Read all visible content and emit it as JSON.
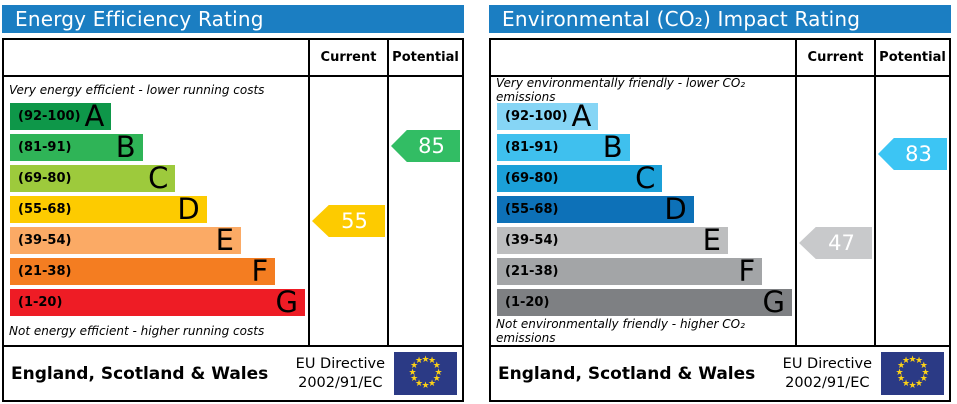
{
  "icons": {
    "eu_star": "★"
  },
  "panels": [
    {
      "title": "Energy Efficiency Rating",
      "column_headers": {
        "current": "Current",
        "potential": "Potential"
      },
      "caption_top": "Very energy efficient - lower running costs",
      "caption_bottom": "Not energy efficient - higher running costs",
      "bands": [
        {
          "grade": "A",
          "range": "(92-100)",
          "color": "#0e9749"
        },
        {
          "grade": "B",
          "range": "(81-91)",
          "color": "#2fb457"
        },
        {
          "grade": "C",
          "range": "(69-80)",
          "color": "#9dca3c"
        },
        {
          "grade": "D",
          "range": "(55-68)",
          "color": "#fdcb00"
        },
        {
          "grade": "E",
          "range": "(39-54)",
          "color": "#fbaa65"
        },
        {
          "grade": "F",
          "range": "(21-38)",
          "color": "#f47d21"
        },
        {
          "grade": "G",
          "range": "(1-20)",
          "color": "#ee1c25"
        }
      ],
      "current": {
        "value": "55",
        "color": "#fdcb00"
      },
      "potential": {
        "value": "85",
        "color": "#32bd64"
      },
      "footer": {
        "region": "England, Scotland & Wales",
        "directive_line1": "EU Directive",
        "directive_line2": "2002/91/EC"
      }
    },
    {
      "title": "Environmental (CO₂) Impact Rating",
      "column_headers": {
        "current": "Current",
        "potential": "Potential"
      },
      "caption_top": "Very environmentally friendly - lower CO₂ emissions",
      "caption_bottom": "Not environmentally friendly - higher CO₂ emissions",
      "bands": [
        {
          "grade": "A",
          "range": "(92-100)",
          "color": "#86d5f5"
        },
        {
          "grade": "B",
          "range": "(81-91)",
          "color": "#3fc0ee"
        },
        {
          "grade": "C",
          "range": "(69-80)",
          "color": "#1ba0d8"
        },
        {
          "grade": "D",
          "range": "(55-68)",
          "color": "#0d71b8"
        },
        {
          "grade": "E",
          "range": "(39-54)",
          "color": "#bdbebf"
        },
        {
          "grade": "F",
          "range": "(21-38)",
          "color": "#a3a5a7"
        },
        {
          "grade": "G",
          "range": "(1-20)",
          "color": "#7e8083"
        }
      ],
      "current": {
        "value": "47",
        "color": "#c8c9cb"
      },
      "potential": {
        "value": "83",
        "color": "#3cc5f4"
      },
      "footer": {
        "region": "England, Scotland & Wales",
        "directive_line1": "EU Directive",
        "directive_line2": "2002/91/EC"
      }
    }
  ],
  "chart_data": [
    {
      "type": "bar",
      "title": "Energy Efficiency Rating",
      "categories": [
        "A (92-100)",
        "B (81-91)",
        "C (69-80)",
        "D (55-68)",
        "E (39-54)",
        "F (21-38)",
        "G (1-20)"
      ],
      "values": [
        34,
        45,
        56,
        66,
        78,
        89,
        99
      ],
      "values_note": "band bar lengths as % of rating column width",
      "band_colors": [
        "#0e9749",
        "#2fb457",
        "#9dca3c",
        "#fdcb00",
        "#fbaa65",
        "#f47d21",
        "#ee1c25"
      ],
      "current": 55,
      "current_band": "D",
      "potential": 85,
      "potential_band": "B",
      "annotations": [
        "Very energy efficient - lower running costs",
        "Not energy efficient - higher running costs"
      ],
      "footer": "England, Scotland & Wales — EU Directive 2002/91/EC"
    },
    {
      "type": "bar",
      "title": "Environmental (CO₂) Impact Rating",
      "categories": [
        "A (92-100)",
        "B (81-91)",
        "C (69-80)",
        "D (55-68)",
        "E (39-54)",
        "F (21-38)",
        "G (1-20)"
      ],
      "values": [
        34,
        45,
        56,
        66,
        78,
        89,
        99
      ],
      "values_note": "band bar lengths as % of rating column width",
      "band_colors": [
        "#86d5f5",
        "#3fc0ee",
        "#1ba0d8",
        "#0d71b8",
        "#bdbebf",
        "#a3a5a7",
        "#7e8083"
      ],
      "current": 47,
      "current_band": "E",
      "potential": 83,
      "potential_band": "B",
      "annotations": [
        "Very environmentally friendly - lower CO₂ emissions",
        "Not environmentally friendly - higher CO₂ emissions"
      ],
      "footer": "England, Scotland & Wales — EU Directive 2002/91/EC"
    }
  ]
}
